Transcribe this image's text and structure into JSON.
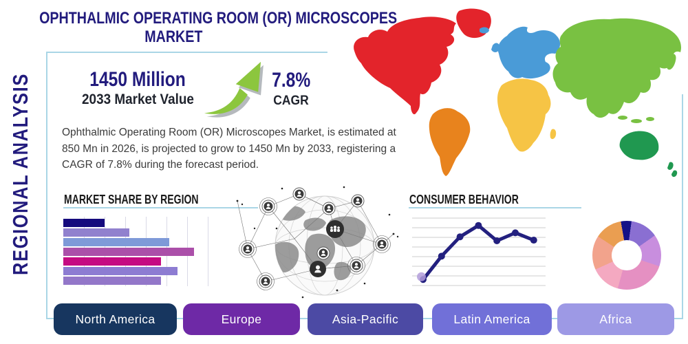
{
  "colors": {
    "accent_line": "#a9d6e6",
    "headline_navy": "#221b7d",
    "arrow_green": "#8cc63e"
  },
  "header": {
    "title_line1": "OPHTHALMIC OPERATING ROOM (OR) MICROSCOPES",
    "title_line2": "MARKET",
    "side_label": "REGIONAL ANALYSIS"
  },
  "stats": {
    "market_value": "1450 Million",
    "market_value_label": "2033 Market Value",
    "cagr_value": "7.8%",
    "cagr_label": "CAGR"
  },
  "description": "Ophthalmic Operating Room (OR) Microscopes Market, is estimated at 850 Mn in 2026, is projected to grow to 1450 Mn by 2033, registering a CAGR of 7.8% during the forecast period.",
  "sections": {
    "market_share": "MARKET SHARE BY REGION",
    "consumer_behavior": "CONSUMER BEHAVIOR"
  },
  "region_buttons": [
    {
      "label": "North America",
      "color": "#17365f"
    },
    {
      "label": "Europe",
      "color": "#6e29a6"
    },
    {
      "label": "Asia-Pacific",
      "color": "#4c4aa4"
    },
    {
      "label": "Latin America",
      "color": "#7170d8"
    },
    {
      "label": "Africa",
      "color": "#9d99e5"
    }
  ],
  "map": {
    "regions": [
      {
        "id": "north-america",
        "color": "#e3242b"
      },
      {
        "id": "south-america",
        "color": "#e8831d"
      },
      {
        "id": "europe",
        "color": "#4a9bd7"
      },
      {
        "id": "africa",
        "color": "#f6c445"
      },
      {
        "id": "asia",
        "color": "#79c142"
      },
      {
        "id": "australia",
        "color": "#209850"
      }
    ]
  },
  "chart_data": [
    {
      "type": "bar",
      "orientation": "horizontal",
      "title": "MARKET SHARE BY REGION",
      "values": [
        20,
        32,
        51,
        63,
        47,
        55,
        47
      ],
      "colors": [
        "#150a7d",
        "#9181ce",
        "#7e9ad8",
        "#ab4fa9",
        "#c50b82",
        "#8d7cd2",
        "#9377c9"
      ],
      "xlim": [
        0,
        70
      ],
      "grid": true,
      "note": "no axis or category labels rendered in image"
    },
    {
      "type": "line",
      "title": "CONSUMER BEHAVIOR",
      "values": [
        9,
        44,
        73,
        90,
        67,
        79,
        68
      ],
      "ylim": [
        0,
        100
      ],
      "grid": "horizontal",
      "line_color": "#23207f",
      "first_point_halo_color": "#b39ddb",
      "note": "no axis labels rendered in image"
    },
    {
      "type": "pie",
      "donut": true,
      "values": [
        5,
        13,
        15,
        24,
        14,
        16,
        13
      ],
      "colors": [
        "#141187",
        "#8a6fd2",
        "#c88ede",
        "#e590c2",
        "#f4a9c1",
        "#f2a38c",
        "#ea9e51"
      ],
      "start_angle_deg": -10,
      "note": "no slice labels rendered in image"
    }
  ]
}
